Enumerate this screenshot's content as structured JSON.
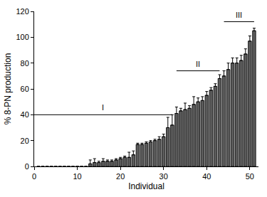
{
  "chart_data": {
    "type": "bar",
    "x_label": "Individual",
    "y_label": "% 8-PN production",
    "x": [
      1,
      2,
      3,
      4,
      5,
      6,
      7,
      8,
      9,
      10,
      11,
      12,
      13,
      14,
      15,
      16,
      17,
      18,
      19,
      20,
      21,
      22,
      23,
      24,
      25,
      26,
      27,
      28,
      29,
      30,
      31,
      32,
      33,
      34,
      35,
      36,
      37,
      38,
      39,
      40,
      41,
      42,
      43,
      44,
      45,
      46,
      47,
      48,
      49,
      50,
      51
    ],
    "values": [
      0,
      0,
      0,
      0,
      0,
      0,
      0,
      0,
      0,
      0,
      0,
      0,
      2,
      3,
      3,
      4,
      4,
      4,
      5,
      6,
      7,
      7,
      9,
      17,
      17,
      18,
      19,
      20,
      21,
      23,
      30,
      32,
      41,
      43,
      44,
      45,
      48,
      50,
      51,
      55,
      59,
      62,
      68,
      70,
      75,
      80,
      80,
      82,
      87,
      97,
      105
    ],
    "errors": [
      0,
      0,
      0,
      0,
      0,
      0,
      0,
      0,
      0,
      0,
      0,
      0,
      3,
      3,
      1,
      2,
      1,
      1,
      1,
      1,
      1,
      4,
      3,
      1,
      1,
      1,
      1,
      1,
      2,
      2,
      8,
      8,
      5,
      2,
      5,
      2,
      6,
      3,
      3,
      3,
      2,
      2,
      3,
      4,
      5,
      4,
      4,
      4,
      4,
      4,
      2
    ],
    "color": "#5a5a5a",
    "xlim": [
      0,
      52
    ],
    "xticks": [
      0,
      10,
      20,
      30,
      40,
      50
    ],
    "ylim": [
      0,
      120
    ],
    "yticks": [
      0,
      20,
      40,
      60,
      80,
      100,
      120
    ],
    "grid": false,
    "annotations": [
      {
        "text": "I",
        "y": 40,
        "x": [
          0,
          32
        ]
      },
      {
        "text": "II",
        "y": 74,
        "x": [
          33,
          43
        ]
      },
      {
        "text": "III",
        "y": 112,
        "x": [
          44,
          51
        ]
      }
    ]
  }
}
